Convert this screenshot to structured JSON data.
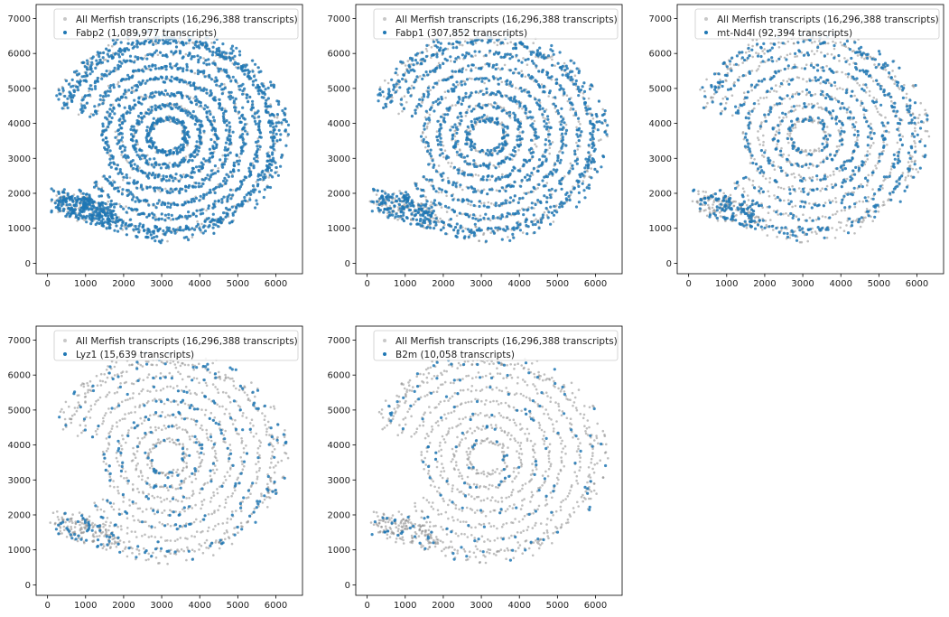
{
  "figure": {
    "layout": "2x3 grid of spatial scatter panels (5 panels, last cell empty)"
  },
  "chart_data": [
    {
      "type": "scatter",
      "title": "",
      "xlabel": "",
      "ylabel": "",
      "xlim": [
        -300,
        6700
      ],
      "ylim": [
        -300,
        7400
      ],
      "xticks": [
        "0",
        "1000",
        "2000",
        "3000",
        "4000",
        "5000",
        "6000"
      ],
      "yticks": [
        "0",
        "1000",
        "2000",
        "3000",
        "4000",
        "5000",
        "6000",
        "7000"
      ],
      "grid": false,
      "legend_location": "top-right",
      "series": [
        {
          "name": "All Merfish transcripts (16,296,388 transcripts)",
          "color": "#d0d0d0",
          "marker": "small dot"
        },
        {
          "name": "Fabp2 (1,089,977 transcripts)",
          "color": "#1f77b4",
          "marker": "small dot"
        }
      ],
      "highlight_density": 0.9
    },
    {
      "type": "scatter",
      "title": "",
      "xlabel": "",
      "ylabel": "",
      "xlim": [
        -300,
        6700
      ],
      "ylim": [
        -300,
        7400
      ],
      "xticks": [
        "0",
        "1000",
        "2000",
        "3000",
        "4000",
        "5000",
        "6000"
      ],
      "yticks": [
        "0",
        "1000",
        "2000",
        "3000",
        "4000",
        "5000",
        "6000",
        "7000"
      ],
      "grid": false,
      "legend_location": "top-right",
      "series": [
        {
          "name": "All Merfish transcripts (16,296,388 transcripts)",
          "color": "#d0d0d0",
          "marker": "small dot"
        },
        {
          "name": "Fabp1 (307,852 transcripts)",
          "color": "#1f77b4",
          "marker": "small dot"
        }
      ],
      "highlight_density": 0.6
    },
    {
      "type": "scatter",
      "title": "",
      "xlabel": "",
      "ylabel": "",
      "xlim": [
        -300,
        6700
      ],
      "ylim": [
        -300,
        7400
      ],
      "xticks": [
        "0",
        "1000",
        "2000",
        "3000",
        "4000",
        "5000",
        "6000"
      ],
      "yticks": [
        "0",
        "1000",
        "2000",
        "3000",
        "4000",
        "5000",
        "6000",
        "7000"
      ],
      "grid": false,
      "legend_location": "top-right",
      "series": [
        {
          "name": "All Merfish transcripts (16,296,388 transcripts)",
          "color": "#d0d0d0",
          "marker": "small dot"
        },
        {
          "name": "mt-Nd4l (92,394 transcripts)",
          "color": "#1f77b4",
          "marker": "small dot"
        }
      ],
      "highlight_density": 0.35
    },
    {
      "type": "scatter",
      "title": "",
      "xlabel": "",
      "ylabel": "",
      "xlim": [
        -300,
        6700
      ],
      "ylim": [
        -300,
        7400
      ],
      "xticks": [
        "0",
        "1000",
        "2000",
        "3000",
        "4000",
        "5000",
        "6000"
      ],
      "yticks": [
        "0",
        "1000",
        "2000",
        "3000",
        "4000",
        "5000",
        "6000",
        "7000"
      ],
      "grid": false,
      "legend_location": "top-right",
      "series": [
        {
          "name": "All Merfish transcripts (16,296,388 transcripts)",
          "color": "#d0d0d0",
          "marker": "small dot"
        },
        {
          "name": "Lyz1 (15,639 transcripts)",
          "color": "#1f77b4",
          "marker": "small dot"
        }
      ],
      "highlight_density": 0.12
    },
    {
      "type": "scatter",
      "title": "",
      "xlabel": "",
      "ylabel": "",
      "xlim": [
        -300,
        6700
      ],
      "ylim": [
        -300,
        7400
      ],
      "xticks": [
        "0",
        "1000",
        "2000",
        "3000",
        "4000",
        "5000",
        "6000"
      ],
      "yticks": [
        "0",
        "1000",
        "2000",
        "3000",
        "4000",
        "5000",
        "6000",
        "7000"
      ],
      "grid": false,
      "legend_location": "top-right",
      "series": [
        {
          "name": "All Merfish transcripts (16,296,388 transcripts)",
          "color": "#d0d0d0",
          "marker": "small dot"
        },
        {
          "name": "B2m (10,058 transcripts)",
          "color": "#1f77b4",
          "marker": "small dot"
        }
      ],
      "highlight_density": 0.08
    }
  ]
}
